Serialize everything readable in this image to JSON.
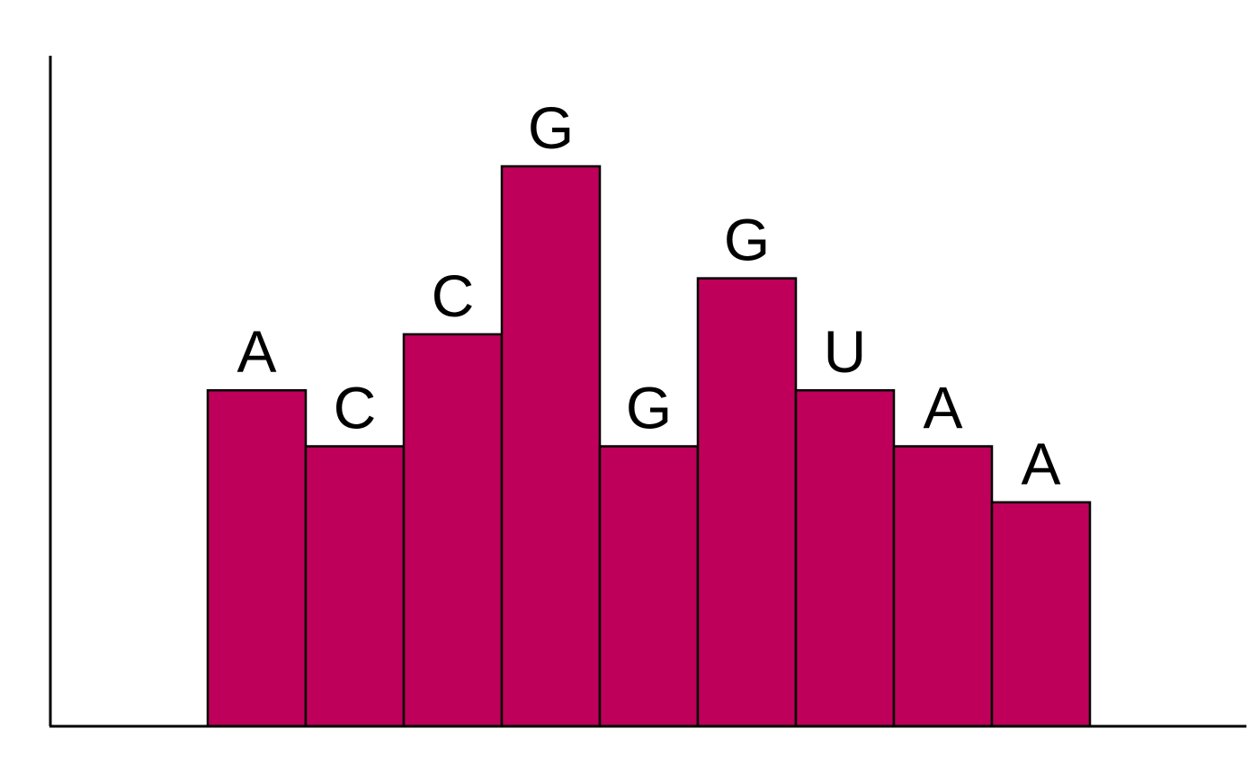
{
  "chart_data": {
    "type": "bar",
    "title": "",
    "xlabel": "",
    "ylabel": "",
    "categories": [
      "A",
      "C",
      "C",
      "G",
      "G",
      "G",
      "U",
      "A",
      "A"
    ],
    "values": [
      6,
      5,
      7,
      10,
      5,
      8,
      6,
      5,
      4
    ],
    "ylim": [
      0,
      12
    ],
    "grid": false,
    "legend": "none",
    "bar_color": "#BE005A",
    "bar_edge_color": "#000000"
  }
}
